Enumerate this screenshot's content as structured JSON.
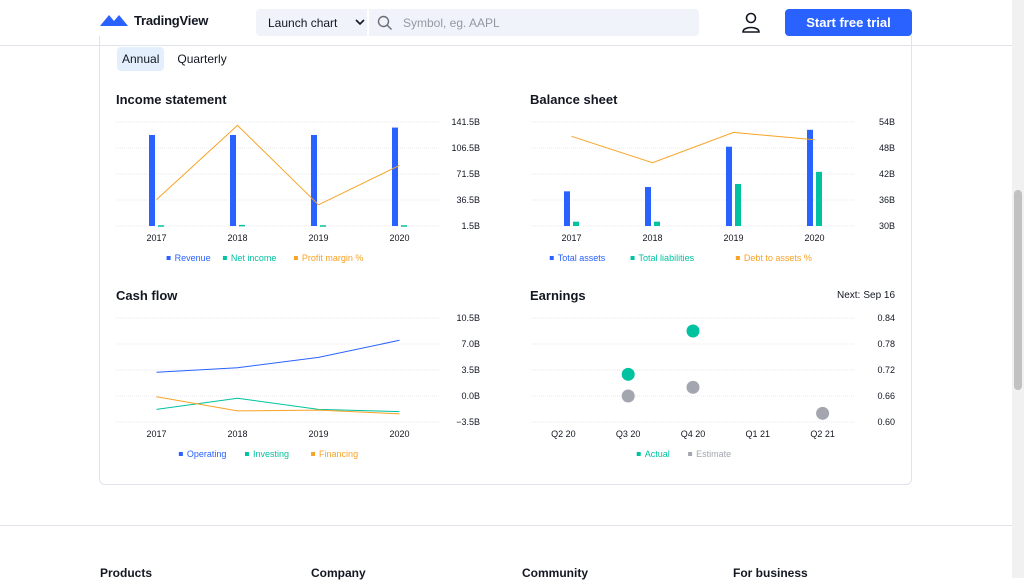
{
  "header": {
    "logo_text": "TradingView",
    "launch_label": "Launch chart",
    "search_placeholder": "Symbol, eg. AAPL",
    "trial_label": "Start free trial"
  },
  "tabs": [
    {
      "label": "Annual",
      "active": true
    },
    {
      "label": "Quarterly",
      "active": false
    }
  ],
  "charts": {
    "income": {
      "title": "Income statement"
    },
    "balance": {
      "title": "Balance sheet"
    },
    "cashflow": {
      "title": "Cash flow"
    },
    "earnings": {
      "title": "Earnings",
      "next_label": "Next:",
      "next_date": "Sep 16"
    }
  },
  "chart_data": [
    {
      "type": "bar",
      "title": "Income statement",
      "categories": [
        "2017",
        "2018",
        "2019",
        "2020"
      ],
      "yticks": [
        "141.5B",
        "106.5B",
        "71.5B",
        "36.5B",
        "1.5B"
      ],
      "ylim": [
        1.5,
        141.5
      ],
      "series": [
        {
          "name": "Revenue",
          "kind": "bar",
          "color": "#2962ff",
          "values": [
            124,
            124,
            124,
            134
          ]
        },
        {
          "name": "Net income",
          "kind": "bar",
          "color": "#00c2a0",
          "values": [
            2.5,
            3,
            2.5,
            2.5
          ]
        },
        {
          "name": "Profit margin %",
          "kind": "line",
          "color": "#f7a325",
          "values": [
            37,
            137,
            30,
            83
          ]
        }
      ]
    },
    {
      "type": "bar",
      "title": "Balance sheet",
      "categories": [
        "2017",
        "2018",
        "2019",
        "2020"
      ],
      "yticks": [
        "54B",
        "48B",
        "42B",
        "36B",
        "30B"
      ],
      "ylim": [
        30,
        54
      ],
      "series": [
        {
          "name": "Total assets",
          "kind": "bar",
          "color": "#2962ff",
          "values": [
            38,
            39,
            48.3,
            52.2
          ]
        },
        {
          "name": "Total liabilities",
          "kind": "bar",
          "color": "#00c2a0",
          "values": [
            31,
            31,
            39.7,
            42.5
          ]
        },
        {
          "name": "Debt to assets %",
          "kind": "line",
          "color": "#f7a325",
          "values": [
            50.7,
            44.6,
            51.6,
            49.9
          ]
        }
      ]
    },
    {
      "type": "line",
      "title": "Cash flow",
      "categories": [
        "2017",
        "2018",
        "2019",
        "2020"
      ],
      "yticks": [
        "10.5B",
        "7.0B",
        "3.5B",
        "0.0B",
        "−3.5B"
      ],
      "ylim": [
        -3.5,
        10.5
      ],
      "series": [
        {
          "name": "Operating",
          "color": "#2962ff",
          "values": [
            3.2,
            3.8,
            5.2,
            7.5
          ]
        },
        {
          "name": "Investing",
          "color": "#00c2a0",
          "values": [
            -1.8,
            -0.3,
            -1.8,
            -2.1
          ]
        },
        {
          "name": "Financing",
          "color": "#f7a325",
          "values": [
            -0.1,
            -2.0,
            -1.9,
            -2.4
          ]
        }
      ]
    },
    {
      "type": "scatter",
      "title": "Earnings",
      "categories": [
        "Q2 20",
        "Q3 20",
        "Q4 20",
        "Q1 21",
        "Q2 21"
      ],
      "yticks": [
        "0.84",
        "0.78",
        "0.72",
        "0.66",
        "0.60"
      ],
      "ylim": [
        0.6,
        0.84
      ],
      "series": [
        {
          "name": "Actual",
          "color": "#00c2a0",
          "values": [
            null,
            0.71,
            0.81,
            null,
            null
          ]
        },
        {
          "name": "Estimate",
          "color": "#a3a6af",
          "values": [
            null,
            0.66,
            0.68,
            null,
            0.62
          ]
        }
      ]
    }
  ],
  "footer": {
    "columns": [
      "Products",
      "Company",
      "Community",
      "For business"
    ]
  }
}
